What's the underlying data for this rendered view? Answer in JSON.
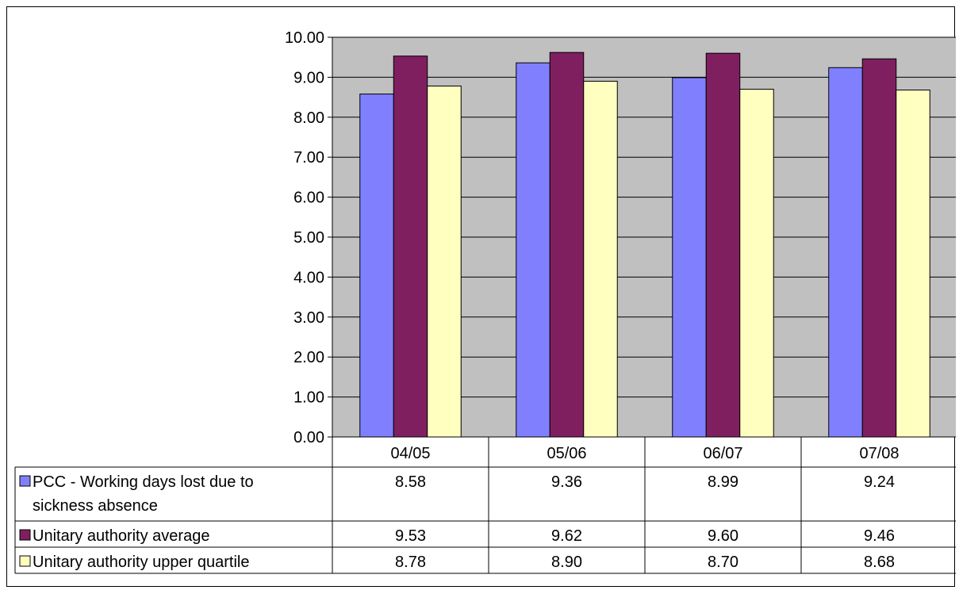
{
  "chart_data": {
    "type": "bar",
    "categories": [
      "04/05",
      "05/06",
      "06/07",
      "07/08"
    ],
    "series": [
      {
        "name": "PCC - Working days lost due to sickness absence",
        "legend_lines": [
          "PCC - Working days lost due to",
          "sickness absence"
        ],
        "values": [
          8.58,
          9.36,
          8.99,
          9.24
        ],
        "labels": [
          "8.58",
          "9.36",
          "8.99",
          "9.24"
        ],
        "color": "#8080FF"
      },
      {
        "name": "Unitary authority average",
        "legend_lines": [
          "Unitary authority average"
        ],
        "values": [
          9.53,
          9.62,
          9.6,
          9.46
        ],
        "labels": [
          "9.53",
          "9.62",
          "9.60",
          "9.46"
        ],
        "color": "#801F5F"
      },
      {
        "name": "Unitary authority upper quartile",
        "legend_lines": [
          "Unitary authority upper quartile"
        ],
        "values": [
          8.78,
          8.9,
          8.7,
          8.68
        ],
        "labels": [
          "8.78",
          "8.90",
          "8.70",
          "8.68"
        ],
        "color": "#FFFFC0"
      }
    ],
    "y_ticks": [
      "0.00",
      "1.00",
      "2.00",
      "3.00",
      "4.00",
      "5.00",
      "6.00",
      "7.00",
      "8.00",
      "9.00",
      "10.00"
    ],
    "ylim": [
      0,
      10
    ],
    "grid": true,
    "plot_background": "#C0C0C0",
    "legend_placement": "data-table",
    "title": "",
    "xlabel": "",
    "ylabel": ""
  }
}
